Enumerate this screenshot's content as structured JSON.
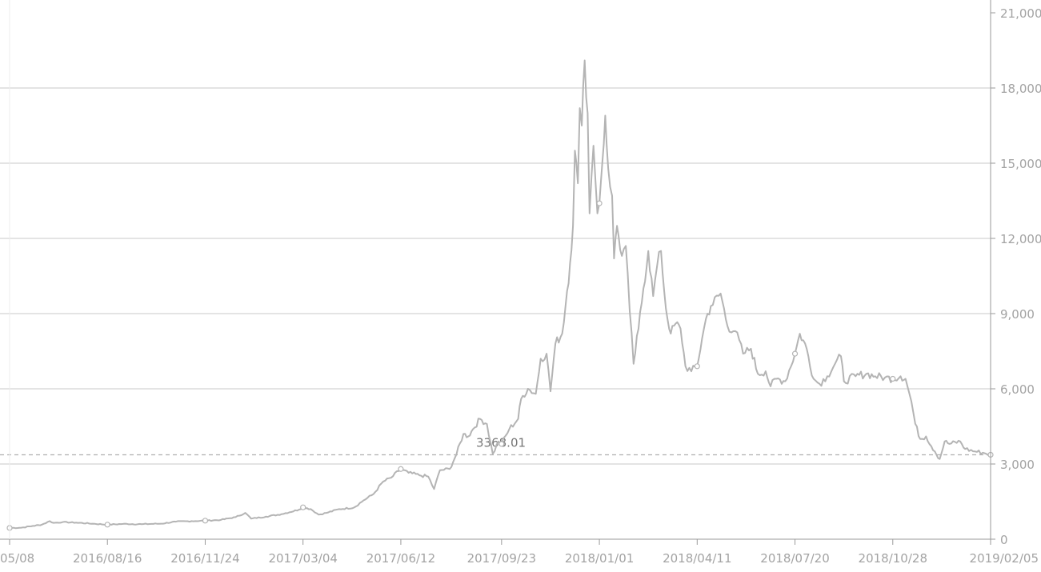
{
  "chart_data": {
    "type": "line",
    "title": "",
    "xlabel": "",
    "ylabel": "",
    "y_axis_side": "right",
    "grid": true,
    "legend": "none",
    "ylim": [
      0,
      21000
    ],
    "y_ticks": [
      0,
      3000,
      6000,
      9000,
      12000,
      15000,
      18000
    ],
    "y_tick_labels": [
      "0",
      "3,000",
      "6,000",
      "9,000",
      "12,000",
      "15,000",
      "18,000"
    ],
    "top_tick_label": "21,000",
    "x_range": [
      "2016-05-08",
      "2019-02-05"
    ],
    "x_ticks": [
      "2016-05-08",
      "2016-08-16",
      "2016-11-24",
      "2017-03-04",
      "2017-06-12",
      "2017-09-23",
      "2018-01-01",
      "2018-04-11",
      "2018-07-20",
      "2018-10-28",
      "2019-02-05"
    ],
    "x_tick_labels": [
      "05/08",
      "2016/08/16",
      "2016/11/24",
      "2017/03/04",
      "2017/06/12",
      "2017/09/23",
      "2018/01/01",
      "2018/04/11",
      "2018/07/20",
      "2018/10/28",
      "2019/02/05"
    ],
    "reference_line": {
      "value": 3368.01,
      "label": "3368.01"
    },
    "colors": {
      "line": "#b4b4b4",
      "grid": "#d4d4d4",
      "axis": "#9a9a9a",
      "text": "#a3a3a3",
      "reference": "#b0b0b0"
    },
    "series": [
      {
        "points": [
          [
            "2016-05-08",
            450
          ],
          [
            "2016-05-20",
            460
          ],
          [
            "2016-06-01",
            530
          ],
          [
            "2016-06-10",
            580
          ],
          [
            "2016-06-18",
            720
          ],
          [
            "2016-06-22",
            650
          ],
          [
            "2016-07-01",
            680
          ],
          [
            "2016-07-15",
            660
          ],
          [
            "2016-08-01",
            620
          ],
          [
            "2016-08-16",
            580
          ],
          [
            "2016-09-01",
            610
          ],
          [
            "2016-09-20",
            600
          ],
          [
            "2016-10-10",
            620
          ],
          [
            "2016-10-25",
            700
          ],
          [
            "2016-11-10",
            720
          ],
          [
            "2016-11-24",
            740
          ],
          [
            "2016-12-10",
            770
          ],
          [
            "2016-12-25",
            880
          ],
          [
            "2017-01-04",
            1050
          ],
          [
            "2017-01-10",
            820
          ],
          [
            "2017-01-25",
            900
          ],
          [
            "2017-02-10",
            1000
          ],
          [
            "2017-02-28",
            1180
          ],
          [
            "2017-03-04",
            1270
          ],
          [
            "2017-03-12",
            1200
          ],
          [
            "2017-03-20",
            980
          ],
          [
            "2017-03-28",
            1050
          ],
          [
            "2017-04-10",
            1200
          ],
          [
            "2017-04-25",
            1260
          ],
          [
            "2017-05-05",
            1550
          ],
          [
            "2017-05-15",
            1800
          ],
          [
            "2017-05-25",
            2300
          ],
          [
            "2017-06-02",
            2450
          ],
          [
            "2017-06-12",
            2800
          ],
          [
            "2017-06-20",
            2650
          ],
          [
            "2017-07-01",
            2550
          ],
          [
            "2017-07-10",
            2500
          ],
          [
            "2017-07-16",
            2000
          ],
          [
            "2017-07-22",
            2750
          ],
          [
            "2017-08-01",
            2800
          ],
          [
            "2017-08-08",
            3400
          ],
          [
            "2017-08-15",
            4200
          ],
          [
            "2017-08-20",
            4100
          ],
          [
            "2017-08-25",
            4400
          ],
          [
            "2017-09-01",
            4800
          ],
          [
            "2017-09-08",
            4600
          ],
          [
            "2017-09-14",
            3400
          ],
          [
            "2017-09-20",
            3900
          ],
          [
            "2017-09-23",
            3800
          ],
          [
            "2017-10-01",
            4400
          ],
          [
            "2017-10-10",
            4800
          ],
          [
            "2017-10-13",
            5600
          ],
          [
            "2017-10-20",
            6000
          ],
          [
            "2017-10-28",
            5800
          ],
          [
            "2017-11-02",
            7200
          ],
          [
            "2017-11-08",
            7400
          ],
          [
            "2017-11-12",
            5900
          ],
          [
            "2017-11-17",
            7800
          ],
          [
            "2017-11-24",
            8200
          ],
          [
            "2017-11-29",
            9900
          ],
          [
            "2017-12-02",
            11000
          ],
          [
            "2017-12-05",
            12500
          ],
          [
            "2017-12-07",
            15500
          ],
          [
            "2017-12-10",
            14200
          ],
          [
            "2017-12-12",
            17200
          ],
          [
            "2017-12-14",
            16500
          ],
          [
            "2017-12-17",
            19100
          ],
          [
            "2017-12-20",
            17000
          ],
          [
            "2017-12-22",
            13000
          ],
          [
            "2017-12-24",
            14500
          ],
          [
            "2017-12-26",
            15700
          ],
          [
            "2017-12-28",
            14300
          ],
          [
            "2017-12-30",
            13000
          ],
          [
            "2018-01-01",
            13400
          ],
          [
            "2018-01-04",
            15000
          ],
          [
            "2018-01-07",
            16900
          ],
          [
            "2018-01-10",
            14800
          ],
          [
            "2018-01-14",
            13700
          ],
          [
            "2018-01-16",
            11200
          ],
          [
            "2018-01-19",
            12500
          ],
          [
            "2018-01-24",
            11300
          ],
          [
            "2018-01-28",
            11700
          ],
          [
            "2018-02-01",
            9100
          ],
          [
            "2018-02-05",
            7000
          ],
          [
            "2018-02-10",
            8400
          ],
          [
            "2018-02-15",
            10000
          ],
          [
            "2018-02-20",
            11500
          ],
          [
            "2018-02-25",
            9700
          ],
          [
            "2018-03-01",
            10900
          ],
          [
            "2018-03-05",
            11500
          ],
          [
            "2018-03-10",
            9200
          ],
          [
            "2018-03-15",
            8200
          ],
          [
            "2018-03-20",
            8600
          ],
          [
            "2018-03-25",
            8400
          ],
          [
            "2018-03-30",
            6900
          ],
          [
            "2018-04-05",
            6700
          ],
          [
            "2018-04-11",
            6900
          ],
          [
            "2018-04-16",
            8000
          ],
          [
            "2018-04-20",
            8800
          ],
          [
            "2018-04-25",
            9300
          ],
          [
            "2018-05-05",
            9800
          ],
          [
            "2018-05-12",
            8500
          ],
          [
            "2018-05-20",
            8300
          ],
          [
            "2018-05-28",
            7400
          ],
          [
            "2018-06-05",
            7600
          ],
          [
            "2018-06-12",
            6600
          ],
          [
            "2018-06-20",
            6700
          ],
          [
            "2018-06-25",
            6100
          ],
          [
            "2018-07-01",
            6400
          ],
          [
            "2018-07-10",
            6300
          ],
          [
            "2018-07-20",
            7400
          ],
          [
            "2018-07-25",
            8200
          ],
          [
            "2018-08-01",
            7600
          ],
          [
            "2018-08-08",
            6400
          ],
          [
            "2018-08-14",
            6200
          ],
          [
            "2018-08-22",
            6500
          ],
          [
            "2018-08-30",
            7000
          ],
          [
            "2018-09-05",
            7300
          ],
          [
            "2018-09-08",
            6300
          ],
          [
            "2018-09-20",
            6500
          ],
          [
            "2018-10-01",
            6600
          ],
          [
            "2018-10-10",
            6500
          ],
          [
            "2018-10-20",
            6450
          ],
          [
            "2018-10-28",
            6400
          ],
          [
            "2018-11-05",
            6500
          ],
          [
            "2018-11-10",
            6400
          ],
          [
            "2018-11-16",
            5500
          ],
          [
            "2018-11-20",
            4600
          ],
          [
            "2018-11-25",
            4000
          ],
          [
            "2018-12-01",
            4100
          ],
          [
            "2018-12-10",
            3500
          ],
          [
            "2018-12-15",
            3200
          ],
          [
            "2018-12-20",
            3900
          ],
          [
            "2018-12-25",
            3800
          ],
          [
            "2019-01-05",
            3900
          ],
          [
            "2019-01-10",
            3600
          ],
          [
            "2019-01-20",
            3500
          ],
          [
            "2019-01-28",
            3450
          ],
          [
            "2019-02-05",
            3368
          ]
        ]
      }
    ]
  }
}
